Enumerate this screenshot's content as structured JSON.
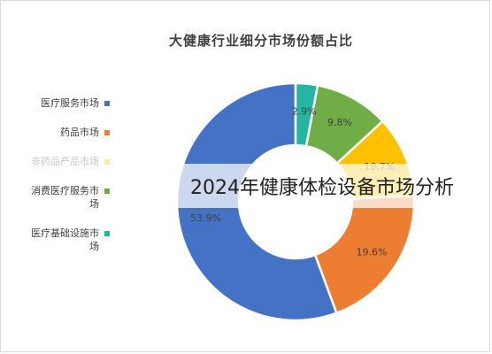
{
  "chart_data": {
    "type": "pie",
    "title": "大健康行业细分市场份额占比",
    "categories": [
      "医疗服务市场",
      "药品市场",
      "非药品产品市场",
      "消费医疗服务市场",
      "医疗基础设施市场"
    ],
    "values": [
      53.9,
      19.6,
      10.7,
      9.8,
      2.9
    ],
    "data_labels": [
      "53.9%",
      "19.6%",
      "10.7%",
      "9.8%",
      "2.9%"
    ],
    "colors": [
      "#4472c4",
      "#ed7d31",
      "#ffc000",
      "#70ad47",
      "#26b5a3"
    ],
    "legend_position": "left"
  },
  "overlay": {
    "text": "2024年健康体检设备市场分析"
  }
}
